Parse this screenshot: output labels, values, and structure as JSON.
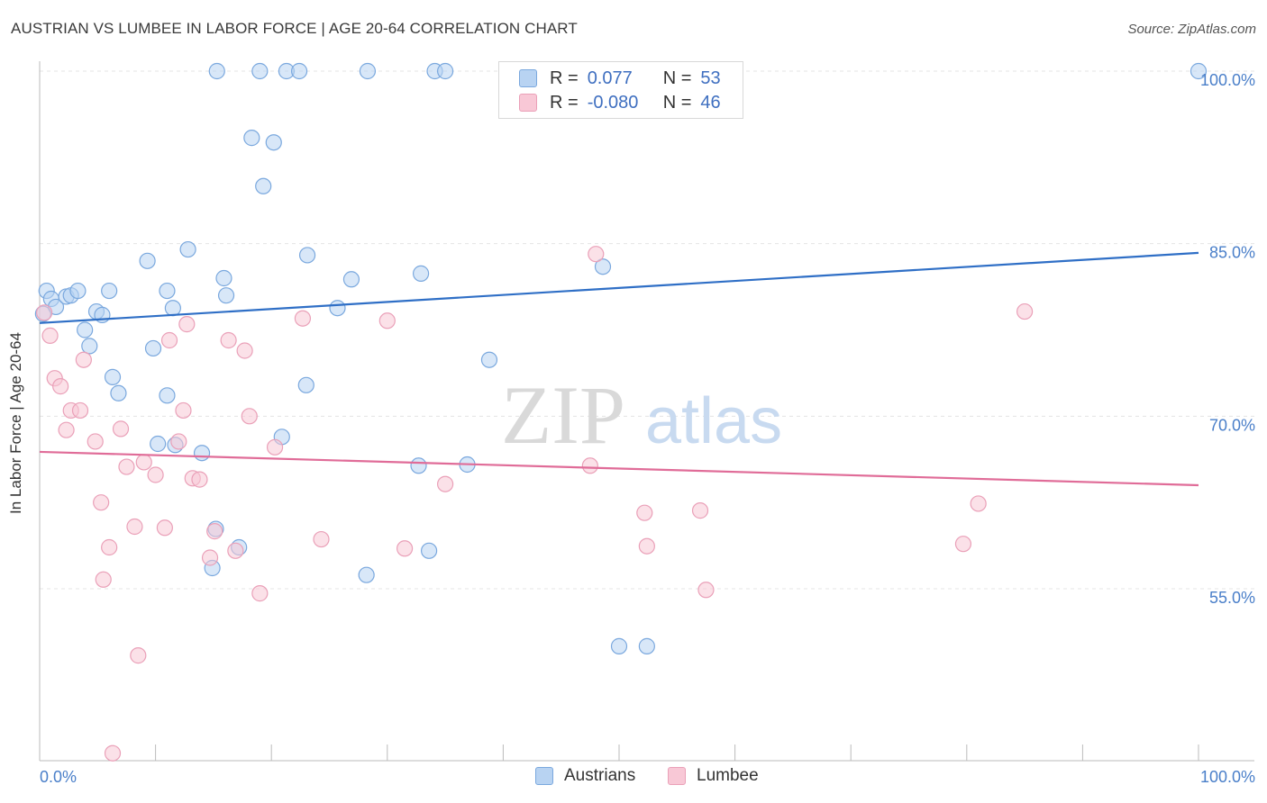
{
  "header": {
    "title": "AUSTRIAN VS LUMBEE IN LABOR FORCE | AGE 20-64 CORRELATION CHART",
    "source": "Source: ZipAtlas.com"
  },
  "watermark": {
    "zip": "ZIP",
    "atlas": "atlas"
  },
  "legend": {
    "rows": [
      {
        "r_label": "R =",
        "r_value": "0.077",
        "n_label": "N =",
        "n_value": "53"
      },
      {
        "r_label": "R =",
        "r_value": "-0.080",
        "n_label": "N =",
        "n_value": "46"
      }
    ]
  },
  "bottom_legend": [
    {
      "label": "Austrians"
    },
    {
      "label": "Lumbee"
    }
  ],
  "colors": {
    "austrians_fill": "#b8d3f2",
    "austrians_stroke": "#7aa8de",
    "austrians_line": "#2f6fc6",
    "lumbee_fill": "#f8c8d6",
    "lumbee_stroke": "#eaa0b8",
    "lumbee_line": "#e06c98",
    "grid": "#e4e4e4",
    "tick_text": "#4a7fc9"
  },
  "chart_data": {
    "type": "scatter",
    "title": "AUSTRIAN VS LUMBEE IN LABOR FORCE | AGE 20-64 CORRELATION CHART",
    "xlabel": "",
    "ylabel": "In Labor Force | Age 20-64",
    "xlim": [
      0,
      100
    ],
    "ylim": [
      38,
      102
    ],
    "x_tick_labels": [
      "0.0%",
      "100.0%"
    ],
    "y_ticks": [
      55,
      70,
      85,
      100
    ],
    "y_tick_labels": [
      "55.0%",
      "70.0%",
      "85.0%",
      "100.0%"
    ],
    "grid": true,
    "legend_position": "top-center",
    "series": [
      {
        "name": "Austrians",
        "r": 0.077,
        "n": 53,
        "trend": [
          [
            0,
            78.1
          ],
          [
            100,
            84.2
          ]
        ],
        "points": [
          [
            0.6,
            80.9
          ],
          [
            1.0,
            80.2
          ],
          [
            1.4,
            79.5
          ],
          [
            0.3,
            78.9
          ],
          [
            2.3,
            80.4
          ],
          [
            2.7,
            80.5
          ],
          [
            3.3,
            80.9
          ],
          [
            4.9,
            79.1
          ],
          [
            5.4,
            78.8
          ],
          [
            6.0,
            80.9
          ],
          [
            3.9,
            77.5
          ],
          [
            4.3,
            76.1
          ],
          [
            9.3,
            83.5
          ],
          [
            9.8,
            75.9
          ],
          [
            11.0,
            80.9
          ],
          [
            12.8,
            84.5
          ],
          [
            11.5,
            79.4
          ],
          [
            6.3,
            73.4
          ],
          [
            6.8,
            72.0
          ],
          [
            11.0,
            71.8
          ],
          [
            10.2,
            67.6
          ],
          [
            11.7,
            67.5
          ],
          [
            14.0,
            66.8
          ],
          [
            15.9,
            82.0
          ],
          [
            16.1,
            80.5
          ],
          [
            15.2,
            60.2
          ],
          [
            17.2,
            58.6
          ],
          [
            14.9,
            56.8
          ],
          [
            18.3,
            94.2
          ],
          [
            20.2,
            93.8
          ],
          [
            19.3,
            90.0
          ],
          [
            20.9,
            68.2
          ],
          [
            23.1,
            84.0
          ],
          [
            23.0,
            72.7
          ],
          [
            25.7,
            79.4
          ],
          [
            26.9,
            81.9
          ],
          [
            28.2,
            56.2
          ],
          [
            32.9,
            82.4
          ],
          [
            32.7,
            65.7
          ],
          [
            36.9,
            65.8
          ],
          [
            33.6,
            58.3
          ],
          [
            15.3,
            100.0
          ],
          [
            19.0,
            100.0
          ],
          [
            21.3,
            100.0
          ],
          [
            22.4,
            100.0
          ],
          [
            28.3,
            100.0
          ],
          [
            34.1,
            100.0
          ],
          [
            35.0,
            100.0
          ],
          [
            38.8,
            74.9
          ],
          [
            48.6,
            83.0
          ],
          [
            50.0,
            50.0
          ],
          [
            52.4,
            50.0
          ],
          [
            100.0,
            100.0
          ]
        ]
      },
      {
        "name": "Lumbee",
        "r": -0.08,
        "n": 46,
        "trend": [
          [
            0,
            66.9
          ],
          [
            100,
            64.0
          ]
        ],
        "points": [
          [
            0.4,
            79.0
          ],
          [
            0.9,
            77.0
          ],
          [
            1.3,
            73.3
          ],
          [
            1.8,
            72.6
          ],
          [
            2.3,
            68.8
          ],
          [
            2.7,
            70.5
          ],
          [
            3.5,
            70.5
          ],
          [
            3.8,
            74.9
          ],
          [
            4.8,
            67.8
          ],
          [
            5.3,
            62.5
          ],
          [
            6.0,
            58.6
          ],
          [
            5.5,
            55.8
          ],
          [
            7.0,
            68.9
          ],
          [
            7.5,
            65.6
          ],
          [
            8.2,
            60.4
          ],
          [
            8.5,
            49.2
          ],
          [
            6.3,
            40.7
          ],
          [
            9.0,
            66.0
          ],
          [
            10.0,
            64.9
          ],
          [
            10.8,
            60.3
          ],
          [
            11.2,
            76.6
          ],
          [
            12.4,
            70.5
          ],
          [
            12.7,
            78.0
          ],
          [
            12.0,
            67.8
          ],
          [
            13.2,
            64.6
          ],
          [
            13.8,
            64.5
          ],
          [
            14.7,
            57.7
          ],
          [
            15.1,
            60.0
          ],
          [
            16.3,
            76.6
          ],
          [
            16.9,
            58.3
          ],
          [
            17.7,
            75.7
          ],
          [
            18.1,
            70.0
          ],
          [
            19.0,
            54.6
          ],
          [
            20.3,
            67.3
          ],
          [
            22.7,
            78.5
          ],
          [
            24.3,
            59.3
          ],
          [
            30.0,
            78.3
          ],
          [
            31.5,
            58.5
          ],
          [
            35.0,
            64.1
          ],
          [
            48.0,
            84.1
          ],
          [
            47.5,
            65.7
          ],
          [
            52.2,
            61.6
          ],
          [
            52.4,
            58.7
          ],
          [
            57.0,
            61.8
          ],
          [
            57.5,
            54.9
          ],
          [
            85.0,
            79.1
          ]
        ]
      }
    ],
    "extra_lumbee": [
      [
        81.0,
        62.4
      ],
      [
        79.7,
        58.9
      ]
    ]
  }
}
